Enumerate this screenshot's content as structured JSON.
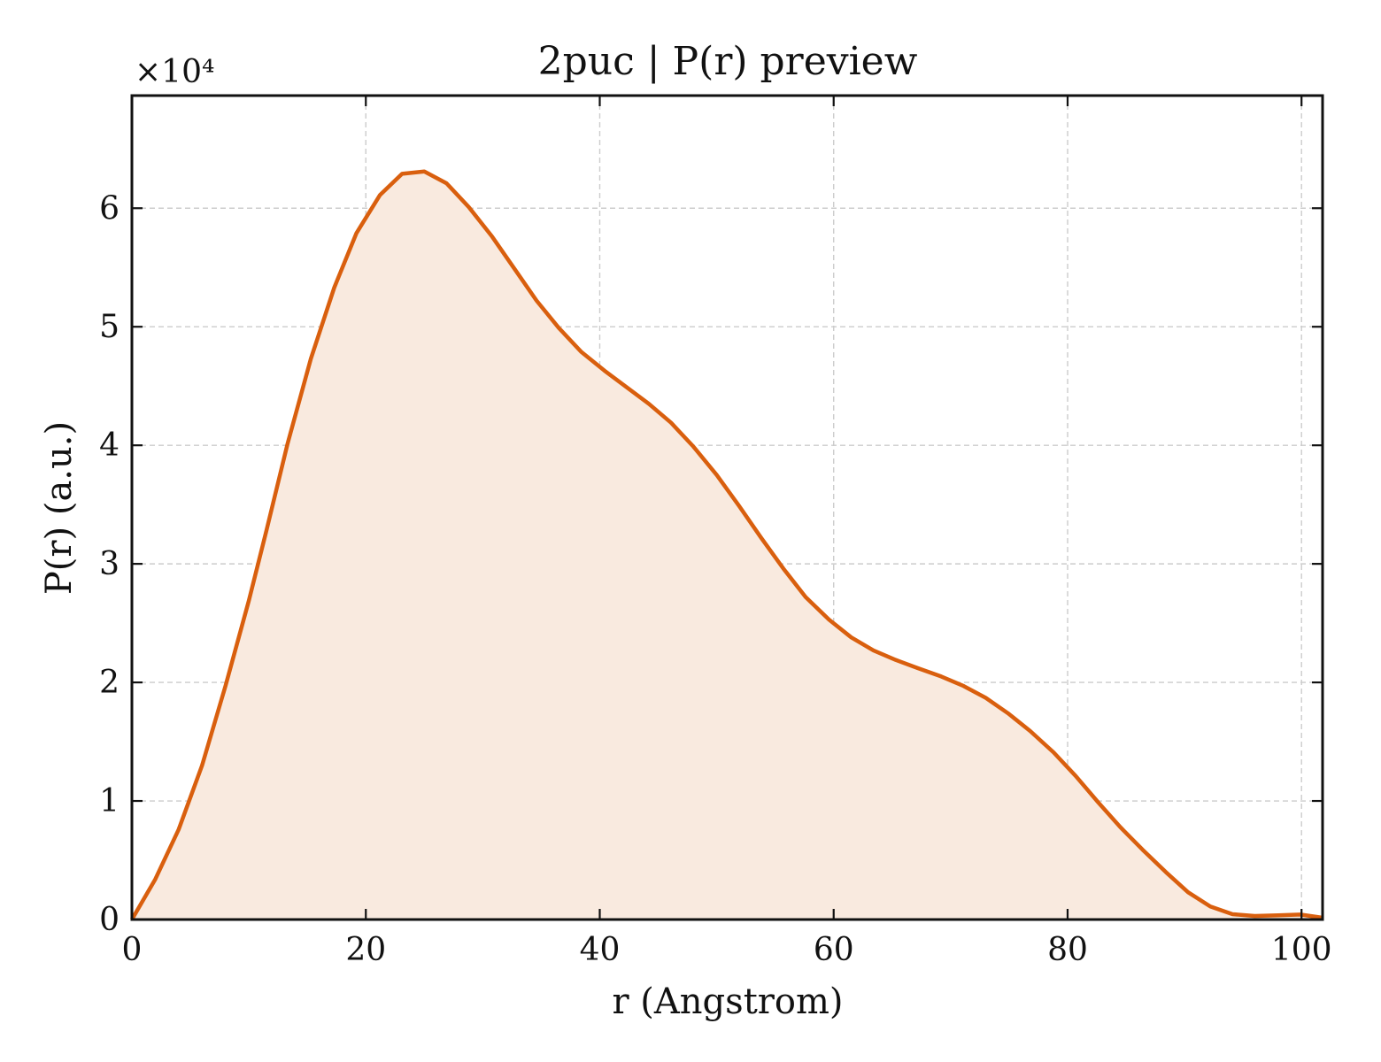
{
  "chart_data": {
    "type": "area",
    "title": "2puc | P(r) preview",
    "xlabel": "r (Angstrom)",
    "ylabel": "P(r) (a.u.)",
    "y_scale_label": "×10⁴",
    "y_multiplier": 10000,
    "xlim": [
      0,
      101.8
    ],
    "ylim": [
      0,
      69500
    ],
    "x_ticks": [
      0,
      20,
      40,
      60,
      80,
      100
    ],
    "x_tick_labels": [
      "0",
      "20",
      "40",
      "60",
      "80",
      "100"
    ],
    "y_ticks": [
      0,
      10000,
      20000,
      30000,
      40000,
      50000,
      60000
    ],
    "y_tick_labels": [
      "0",
      "1",
      "2",
      "3",
      "4",
      "5",
      "6"
    ],
    "grid": true,
    "colors": {
      "line": "#d95f0e",
      "fill": "#f9eadf",
      "axes": "#111111",
      "grid": "#cccccc"
    },
    "series": [
      {
        "x": [
          0,
          2,
          4,
          6,
          8,
          10,
          11.5,
          13.3,
          15.3,
          17.3,
          19.2,
          21.2,
          23.1,
          25.0,
          26.9,
          28.8,
          30.8,
          32.7,
          34.6,
          36.5,
          38.4,
          40.4,
          42.3,
          44.2,
          46.1,
          48.0,
          50.0,
          51.9,
          53.8,
          55.7,
          57.6,
          59.6,
          61.5,
          63.4,
          65.3,
          67.2,
          69.2,
          71.1,
          73.0,
          74.9,
          76.8,
          78.8,
          80.7,
          82.6,
          84.5,
          86.4,
          88.4,
          90.3,
          92.2,
          94.1,
          96.0,
          98.0,
          99.9,
          101.8
        ],
        "y": [
          0,
          3400,
          7600,
          13000,
          19700,
          26900,
          32800,
          40100,
          47300,
          53300,
          57900,
          61100,
          62900,
          63100,
          62100,
          60100,
          57600,
          54900,
          52200,
          49900,
          47900,
          46300,
          44900,
          43500,
          41900,
          39900,
          37500,
          34900,
          32200,
          29600,
          27200,
          25300,
          23800,
          22700,
          21900,
          21200,
          20500,
          19700,
          18700,
          17400,
          15900,
          14100,
          12100,
          9900,
          7800,
          5900,
          4000,
          2300,
          1100,
          450,
          300,
          350,
          420,
          150
        ]
      }
    ]
  }
}
